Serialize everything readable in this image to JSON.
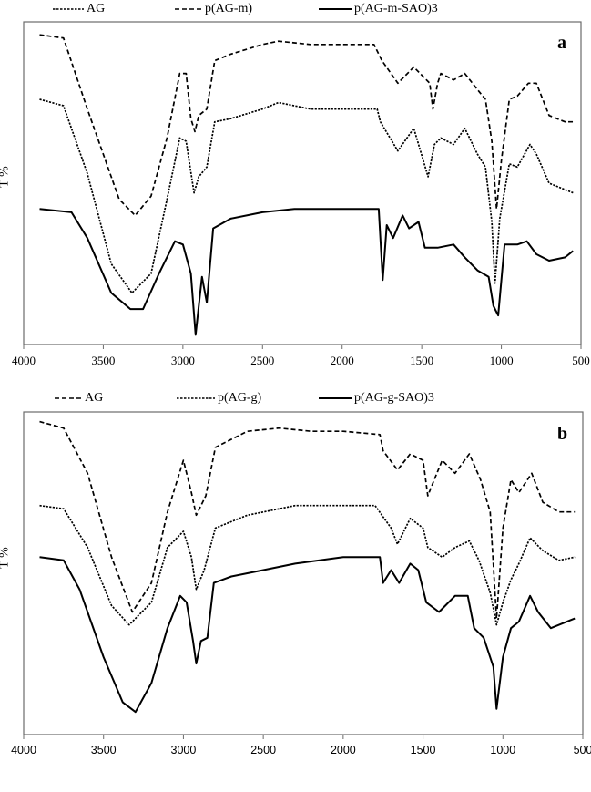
{
  "chart_data": [
    {
      "type": "line",
      "panel_label": "a",
      "xlabel": "",
      "ylabel": "T %",
      "xlim": [
        4000,
        500
      ],
      "x_reversed": true,
      "x_ticks": [
        4000,
        3500,
        3000,
        2500,
        2000,
        1500,
        1000,
        500
      ],
      "y_ticks": [],
      "grid": false,
      "legend_position": "top",
      "series": [
        {
          "name": "AG",
          "style": "dotted",
          "x": [
            3900,
            3750,
            3600,
            3450,
            3320,
            3200,
            3100,
            3020,
            2980,
            2930,
            2900,
            2850,
            2800,
            2700,
            2500,
            2400,
            2200,
            2000,
            1780,
            1760,
            1650,
            1550,
            1460,
            1420,
            1380,
            1300,
            1230,
            1150,
            1100,
            1060,
            1040,
            1010,
            950,
            900,
            820,
            780,
            700,
            600,
            550
          ],
          "values": [
            76,
            74,
            53,
            25,
            16,
            22,
            45,
            64,
            63,
            47,
            52,
            55,
            69,
            70,
            73,
            75,
            73,
            73,
            73,
            69,
            60,
            67,
            52,
            62,
            64,
            62,
            67,
            59,
            55,
            38,
            19,
            39,
            56,
            55,
            62,
            59,
            50,
            48,
            47
          ]
        },
        {
          "name": "p(AG-m)",
          "style": "dashed",
          "x": [
            3900,
            3750,
            3600,
            3400,
            3300,
            3200,
            3100,
            3020,
            2980,
            2950,
            2925,
            2900,
            2850,
            2800,
            2700,
            2500,
            2400,
            2200,
            2000,
            1800,
            1750,
            1650,
            1550,
            1450,
            1430,
            1400,
            1380,
            1300,
            1230,
            1150,
            1100,
            1060,
            1030,
            1000,
            950,
            900,
            830,
            780,
            700,
            600,
            550
          ],
          "values": [
            96,
            95,
            73,
            45,
            40,
            46,
            64,
            84,
            84,
            70,
            66,
            71,
            73,
            88,
            90,
            93,
            94,
            93,
            93,
            93,
            88,
            81,
            86,
            81,
            73,
            81,
            84,
            82,
            84,
            79,
            76,
            63,
            42,
            57,
            76,
            77,
            81,
            81,
            71,
            69,
            69
          ]
        },
        {
          "name": "p(AG-m-SAO)3",
          "style": "solid",
          "x": [
            3900,
            3700,
            3600,
            3450,
            3330,
            3250,
            3150,
            3050,
            3000,
            2950,
            2920,
            2880,
            2850,
            2810,
            2700,
            2500,
            2300,
            2000,
            1770,
            1745,
            1720,
            1680,
            1620,
            1580,
            1520,
            1480,
            1400,
            1300,
            1230,
            1150,
            1080,
            1050,
            1020,
            980,
            900,
            840,
            780,
            700,
            600,
            550
          ],
          "values": [
            42,
            41,
            33,
            16,
            11,
            11,
            22,
            32,
            31,
            22,
            3,
            21,
            13,
            36,
            39,
            41,
            42,
            42,
            42,
            20,
            37,
            33,
            40,
            36,
            38,
            30,
            30,
            31,
            27,
            23,
            21,
            12,
            9,
            31,
            31,
            32,
            28,
            26,
            27,
            29
          ]
        }
      ]
    },
    {
      "type": "line",
      "panel_label": "b",
      "xlabel": "",
      "ylabel": "T %",
      "xlim": [
        4000,
        500
      ],
      "x_reversed": true,
      "x_ticks": [
        4000,
        3500,
        3000,
        2500,
        2000,
        1500,
        1000,
        500
      ],
      "y_ticks": [],
      "grid": false,
      "legend_position": "top",
      "series": [
        {
          "name": "AG",
          "style": "dashed",
          "x": [
            3900,
            3750,
            3600,
            3450,
            3320,
            3200,
            3100,
            3000,
            2950,
            2920,
            2860,
            2800,
            2600,
            2400,
            2200,
            2000,
            1770,
            1750,
            1660,
            1580,
            1500,
            1470,
            1430,
            1380,
            1300,
            1210,
            1140,
            1080,
            1040,
            1000,
            950,
            900,
            820,
            750,
            650,
            550
          ],
          "values": [
            97,
            95,
            81,
            55,
            38,
            47,
            69,
            85,
            75,
            68,
            74,
            89,
            94,
            95,
            94,
            94,
            93,
            88,
            82,
            87,
            85,
            74,
            79,
            85,
            81,
            87,
            79,
            69,
            36,
            64,
            79,
            75,
            81,
            72,
            69,
            69
          ]
        },
        {
          "name": "p(AG-g)",
          "style": "dotted",
          "x": [
            3900,
            3750,
            3600,
            3450,
            3340,
            3200,
            3100,
            3000,
            2950,
            2920,
            2870,
            2800,
            2600,
            2300,
            2000,
            1800,
            1700,
            1660,
            1580,
            1500,
            1470,
            1380,
            1300,
            1210,
            1150,
            1080,
            1040,
            1000,
            950,
            900,
            830,
            750,
            650,
            550
          ],
          "values": [
            71,
            70,
            58,
            40,
            34,
            41,
            58,
            63,
            55,
            45,
            51,
            64,
            68,
            71,
            71,
            71,
            64,
            59,
            67,
            64,
            58,
            55,
            58,
            60,
            54,
            44,
            34,
            41,
            48,
            53,
            61,
            57,
            54,
            55
          ]
        },
        {
          "name": "p(AG-g-SAO)3",
          "style": "solid",
          "x": [
            3900,
            3750,
            3650,
            3500,
            3380,
            3300,
            3200,
            3100,
            3020,
            2980,
            2940,
            2920,
            2890,
            2850,
            2810,
            2700,
            2500,
            2300,
            2000,
            1770,
            1750,
            1700,
            1650,
            1580,
            1530,
            1480,
            1400,
            1300,
            1220,
            1180,
            1120,
            1060,
            1040,
            1000,
            950,
            900,
            830,
            780,
            700,
            600,
            550
          ],
          "values": [
            55,
            54,
            45,
            24,
            10,
            7,
            16,
            33,
            43,
            41,
            29,
            22,
            29,
            30,
            47,
            49,
            51,
            53,
            55,
            55,
            47,
            51,
            47,
            53,
            51,
            41,
            38,
            43,
            43,
            33,
            30,
            21,
            8,
            24,
            33,
            35,
            43,
            38,
            33,
            35,
            36
          ]
        }
      ]
    }
  ],
  "panels": [
    {
      "label": "a",
      "ylabel": "T %",
      "legend": [
        {
          "name": "AG",
          "style": "dotted"
        },
        {
          "name": "p(AG-m)",
          "style": "dashed"
        },
        {
          "name": "p(AG-m-SAO)3",
          "style": "solid"
        }
      ],
      "x_tick_labels": [
        "4000",
        "3500",
        "3000",
        "2500",
        "2000",
        "1500",
        "1000",
        "500"
      ]
    },
    {
      "label": "b",
      "ylabel": "T %",
      "legend": [
        {
          "name": "AG",
          "style": "dashed"
        },
        {
          "name": "p(AG-g)",
          "style": "dotted"
        },
        {
          "name": "p(AG-g-SAO)3",
          "style": "solid"
        }
      ],
      "x_tick_labels": [
        "4000",
        "3500",
        "3000",
        "2500",
        "2000",
        "1500",
        "1000",
        "500"
      ]
    }
  ],
  "colors": {
    "line": "#000000",
    "frame": "#6b6b6b",
    "background": "#ffffff"
  }
}
